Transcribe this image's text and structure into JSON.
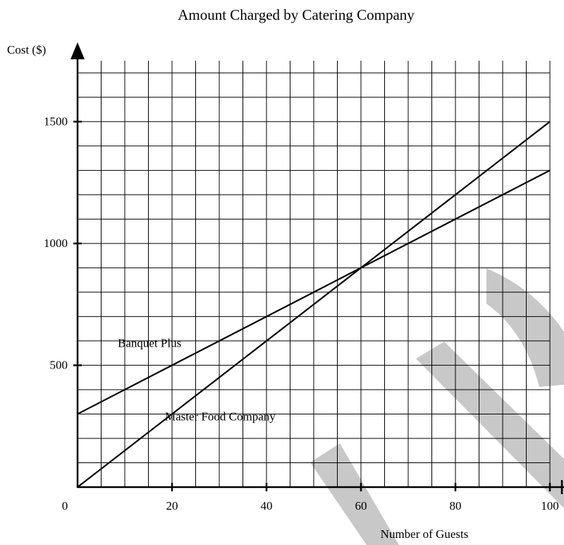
{
  "chart_data": {
    "type": "line",
    "title": "Amount Charged by Catering Company",
    "xlabel": "Number of Guests",
    "ylabel": "Cost ($)",
    "xlim": [
      0,
      100
    ],
    "ylim": [
      0,
      1750
    ],
    "x_ticks": [
      0,
      20,
      40,
      60,
      80,
      100
    ],
    "y_ticks": [
      500,
      1000,
      1500
    ],
    "grid": true,
    "series": [
      {
        "name": "Banquet Plus",
        "x": [
          0,
          100
        ],
        "y": [
          300,
          1300
        ]
      },
      {
        "name": "Master Food Company",
        "x": [
          0,
          100
        ],
        "y": [
          0,
          1500
        ]
      }
    ]
  }
}
